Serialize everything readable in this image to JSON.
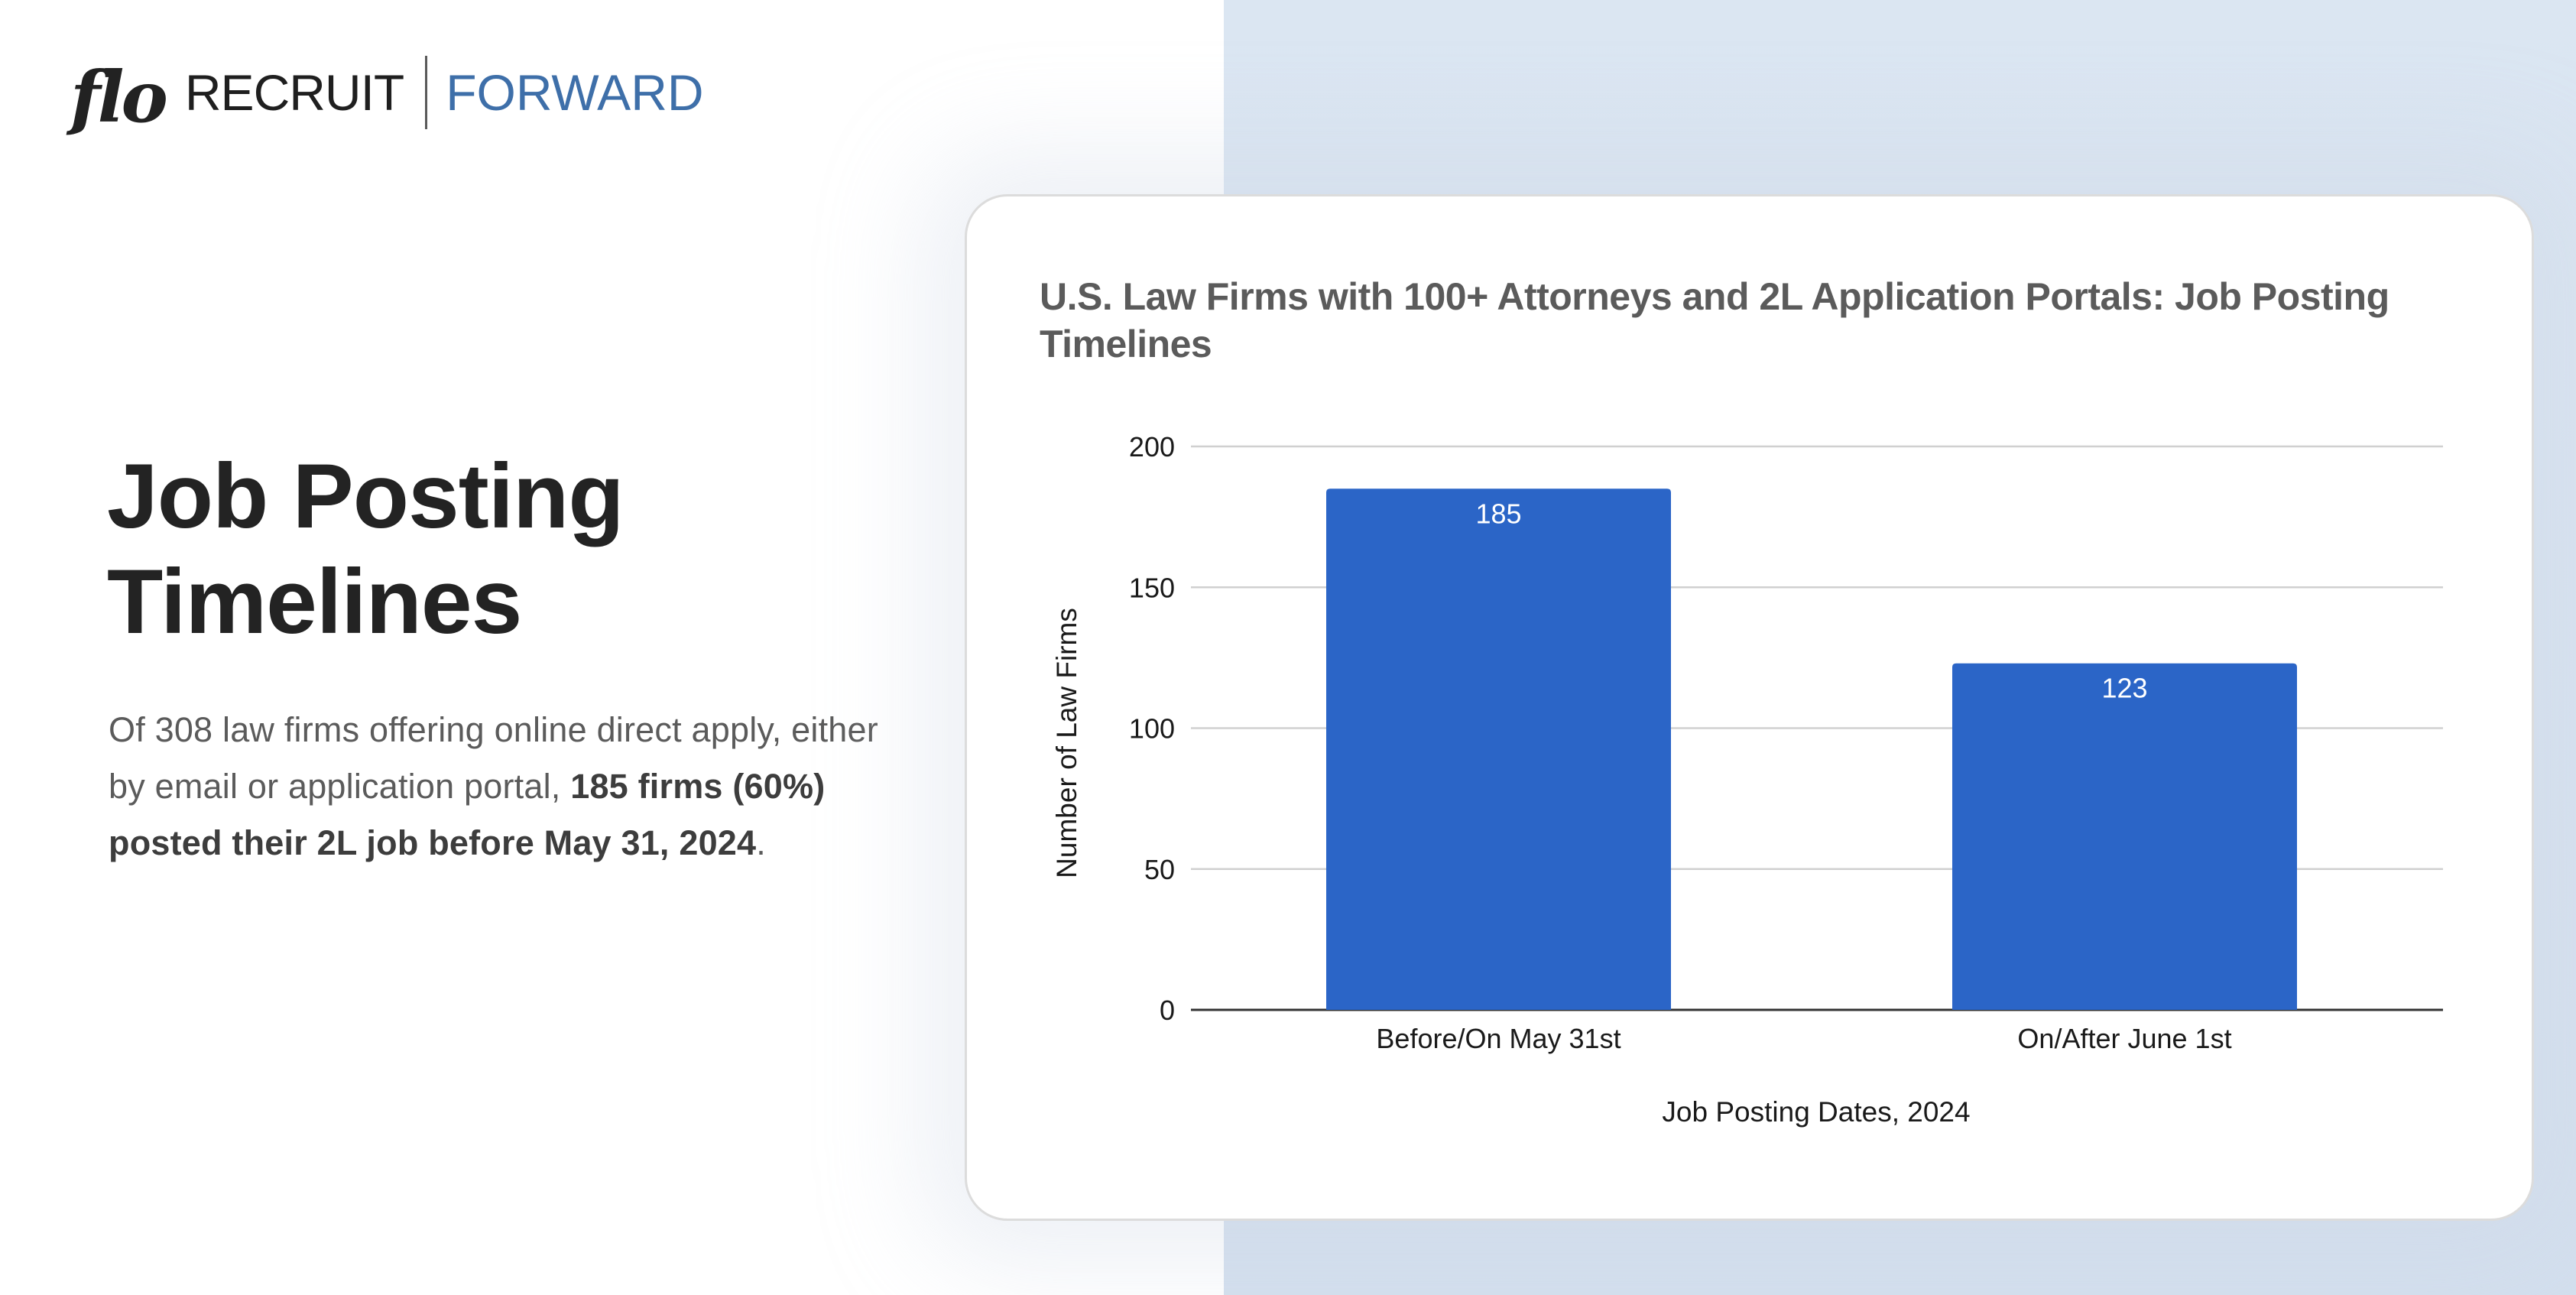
{
  "brand": {
    "logo_script": "flo",
    "logo_word": "RECRUIT",
    "logo_tagline": "FORWARD",
    "tagline_color": "#3e6fa9"
  },
  "hero": {
    "title_line1": "Job Posting",
    "title_line2": "Timelines",
    "body_intro": "Of 308 law firms offering online direct apply, either by email or application portal, ",
    "body_bold": "185 firms (60%) posted their 2L job before May 31, 2024",
    "body_end": "."
  },
  "colors": {
    "bar": "#2b65c7",
    "panel_bg": "#dbe6f2",
    "grid": "#d0d0d0",
    "baseline": "#333333"
  },
  "chart_data": {
    "type": "bar",
    "title": "U.S. Law Firms with 100+ Attorneys and 2L Application Portals: Job Posting Timelines",
    "categories": [
      "Before/On May 31st",
      "On/After June 1st"
    ],
    "values": [
      185,
      123
    ],
    "data_labels": [
      "185",
      "123"
    ],
    "xlabel": "Job Posting Dates, 2024",
    "ylabel": "Number of Law Firms",
    "ylim": [
      0,
      200
    ],
    "yticks": [
      0,
      50,
      100,
      150,
      200
    ],
    "ytick_labels": [
      "0",
      "50",
      "100",
      "150",
      "200"
    ],
    "grid": true,
    "legend": "none",
    "bar_color": "#2b65c7"
  }
}
